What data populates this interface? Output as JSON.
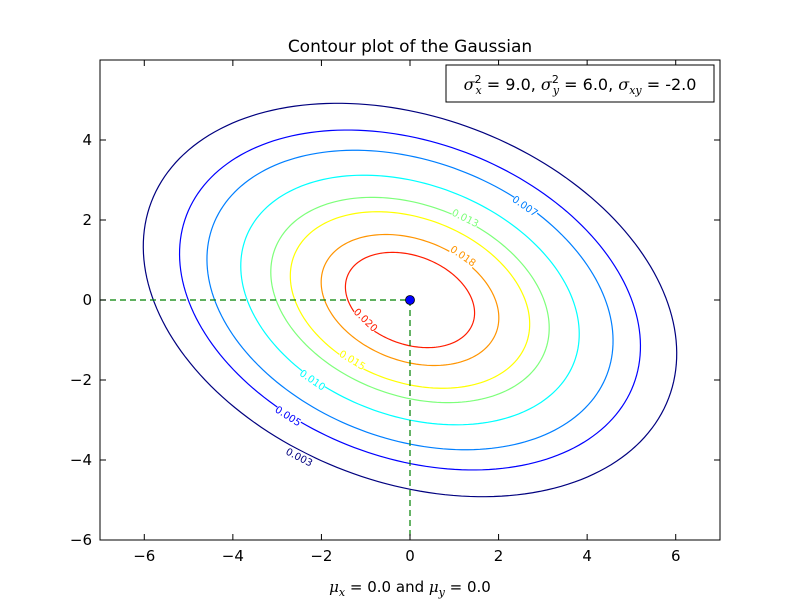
{
  "chart_data": {
    "type": "contour",
    "title": "Contour plot of the Gaussian",
    "xlabel": {
      "mu_x_symbol": "μ",
      "mu_x_sub": "x",
      "eq1": " = 0.0",
      "and": " and ",
      "mu_y_symbol": "μ",
      "mu_y_sub": "y",
      "eq2": " = 0.0"
    },
    "xlim": [
      -7,
      7
    ],
    "ylim": [
      -6,
      6
    ],
    "xticks": [
      -6,
      -4,
      -2,
      0,
      2,
      4,
      6
    ],
    "xtick_labels": [
      "−6",
      "−4",
      "−2",
      "0",
      "2",
      "4",
      "6"
    ],
    "yticks": [
      -6,
      -4,
      -2,
      0,
      2,
      4
    ],
    "ytick_labels": [
      "−6",
      "−4",
      "−2",
      "0",
      "2",
      "4"
    ],
    "mean": [
      0.0,
      0.0
    ],
    "covariance": {
      "sx2": 9.0,
      "sy2": 6.0,
      "sxy": -2.0
    },
    "legend_box": {
      "position": "top-right",
      "sx2_sym": "σ",
      "sx2_sub": "x",
      "sx2_sup": "2",
      "sx2_val": "9.0",
      "sy2_sym": "σ",
      "sy2_sub": "y",
      "sy2_sup": "2",
      "sy2_val": "6.0",
      "sxy_sym": "σ",
      "sxy_sub": "xy",
      "sxy_val": "-2.0"
    },
    "levels": [
      {
        "value": 0.003,
        "label": "0.003",
        "color": "#00007f",
        "label_at": [
          -2.5,
          -3.93
        ]
      },
      {
        "value": 0.005,
        "label": "0.005",
        "color": "#0000ff",
        "label_at": [
          -2.75,
          -2.9
        ]
      },
      {
        "value": 0.007,
        "label": "0.007",
        "color": "#007fff",
        "label_at": [
          2.6,
          2.35
        ]
      },
      {
        "value": 0.01,
        "label": "0.010",
        "color": "#00ffff",
        "label_at": [
          -2.2,
          -2.0
        ]
      },
      {
        "value": 0.013,
        "label": "0.013",
        "color": "#7dff7a",
        "label_at": [
          1.25,
          2.05
        ]
      },
      {
        "value": 0.015,
        "label": "0.015",
        "color": "#ffff00",
        "label_at": [
          -1.3,
          -1.5
        ]
      },
      {
        "value": 0.018,
        "label": "0.018",
        "color": "#ff9400",
        "label_at": [
          1.2,
          1.1
        ]
      },
      {
        "value": 0.02,
        "label": "0.020",
        "color": "#ff1d00",
        "label_at": [
          -1.0,
          -0.5
        ]
      }
    ],
    "guide_color": "#008000",
    "point_color": "#0000ff",
    "grid": false
  }
}
